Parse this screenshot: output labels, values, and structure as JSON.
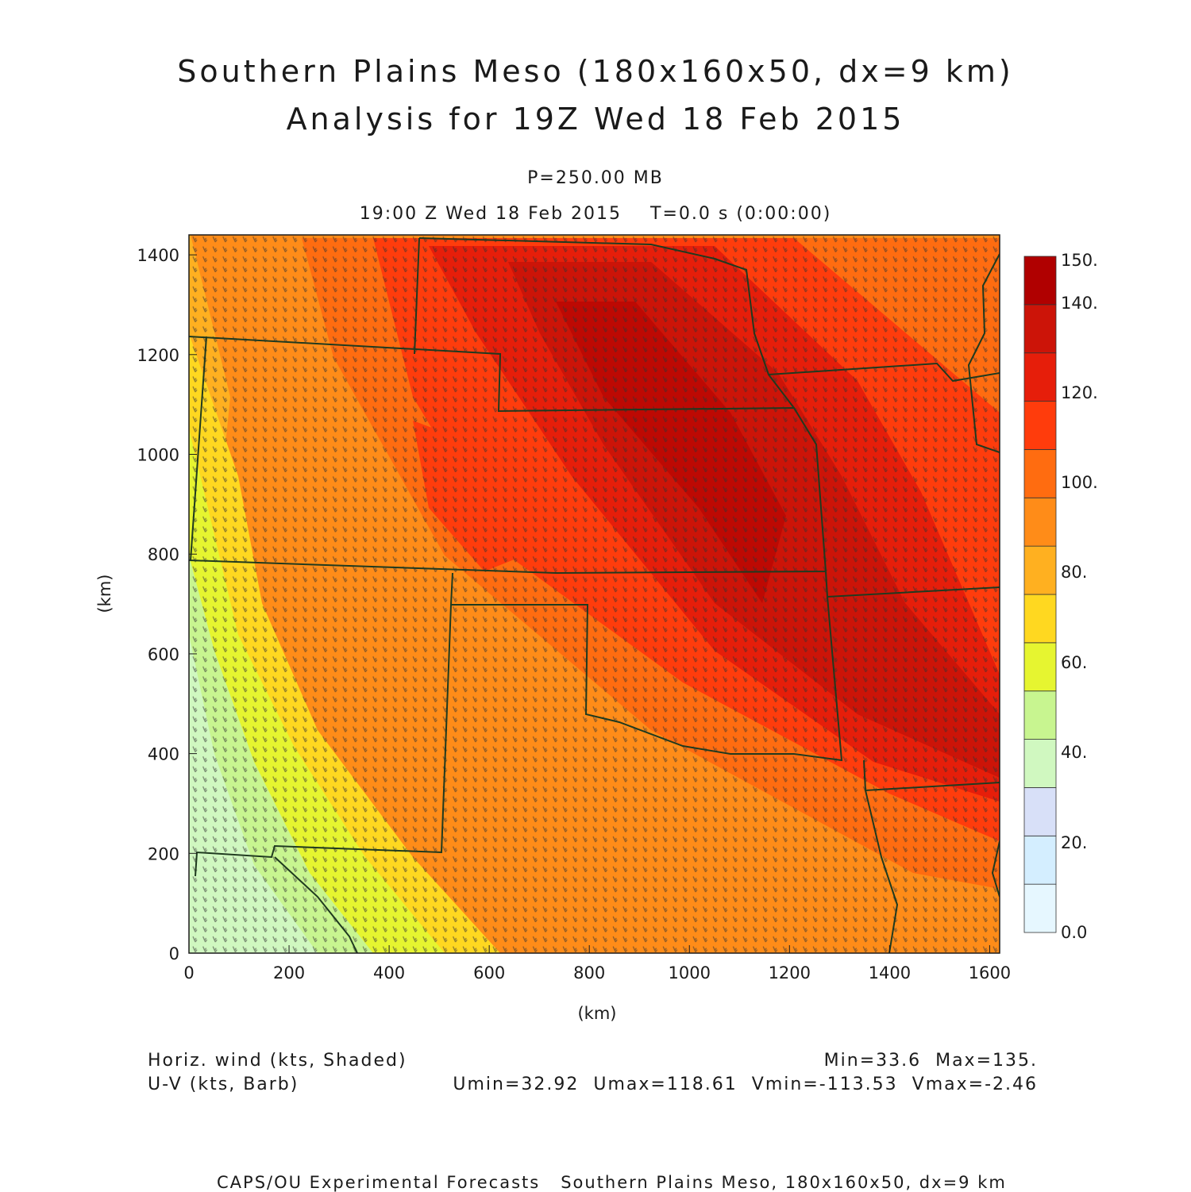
{
  "title_line1": "Southern Plains Meso (180x160x50, dx=9 km)",
  "title_line2": "Analysis for 19Z Wed 18 Feb 2015",
  "level_label": "P=250.00 MB",
  "time_label": "19:00 Z Wed 18 Feb 2015    T=0.0 s (0:00:00)",
  "field_label_1": "Horiz. wind (kts, Shaded)",
  "field_label_2": "U-V (kts, Barb)",
  "minmax_label": "Min=33.6  Max=135.",
  "uv_minmax_label": "Umin=32.92  Umax=118.61  Vmin=-113.53  Vmax=-2.46",
  "footer": "CAPS/OU Experimental Forecasts   Southern Plains Meso, 180x160x50, dx=9 km",
  "axes": {
    "x_label": "(km)",
    "y_label": "(km)",
    "x_ticks": [
      0,
      200,
      400,
      600,
      800,
      1000,
      1200,
      1400,
      1600
    ],
    "y_ticks": [
      0,
      200,
      400,
      600,
      800,
      1000,
      1200,
      1400
    ],
    "xlim": [
      0,
      1620
    ],
    "ylim": [
      0,
      1440
    ]
  },
  "colorbar": {
    "labels": [
      "150.",
      "140.",
      "120.",
      "100.",
      "80.",
      "60.",
      "40.",
      "20.",
      "0.0"
    ],
    "colors": [
      "#e6f7ff",
      "#d4eeff",
      "#d8e0f8",
      "#d0f8c0",
      "#c8f590",
      "#e6f530",
      "#ffd820",
      "#ffb020",
      "#ff8c18",
      "#ff6c10",
      "#ff3c0c",
      "#e61e0a",
      "#cc1408",
      "#b00000"
    ]
  },
  "field": {
    "units": "kts",
    "min": 33.6,
    "max": 135
  }
}
